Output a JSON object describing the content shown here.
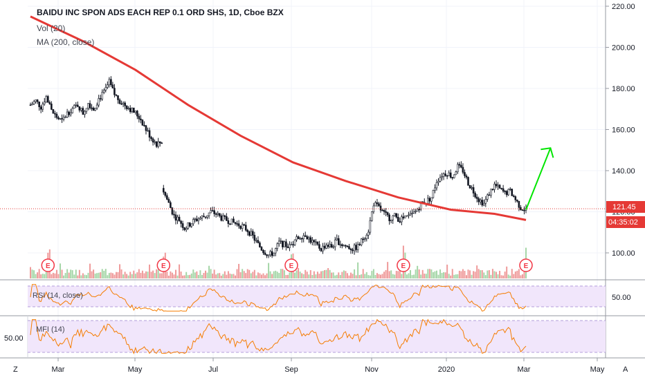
{
  "chart_data": {
    "type": "candlestick",
    "title": "BAIDU INC SPON ADS EACH REP 0.1 ORD SHS, 1D, Cboe BZX",
    "legend": [
      "Vol (20)",
      "MA (200, close)"
    ],
    "price_axis": {
      "ticks": [
        220,
        200,
        180,
        160,
        140,
        120,
        100
      ],
      "tick_labels": [
        "220.00",
        "200.00",
        "180.00",
        "160.00",
        "140.00",
        "120.00",
        "100.00"
      ],
      "range": [
        93,
        222
      ]
    },
    "x_axis": {
      "ticks": [
        "Mar",
        "May",
        "Jul",
        "Sep",
        "Nov",
        "2020",
        "Mar",
        "May"
      ]
    },
    "last_price": {
      "value": 121.45,
      "label": "121.45",
      "timer": "04:35:02"
    },
    "price_series": [
      [
        0,
        172
      ],
      [
        3,
        174
      ],
      [
        6,
        171
      ],
      [
        9,
        176
      ],
      [
        12,
        169
      ],
      [
        15,
        166
      ],
      [
        18,
        164
      ],
      [
        21,
        168
      ],
      [
        24,
        170
      ],
      [
        27,
        172
      ],
      [
        30,
        168
      ],
      [
        33,
        173
      ],
      [
        36,
        170
      ],
      [
        39,
        175
      ],
      [
        42,
        178
      ],
      [
        45,
        183
      ],
      [
        48,
        177
      ],
      [
        51,
        174
      ],
      [
        54,
        172
      ],
      [
        57,
        170
      ],
      [
        60,
        168
      ],
      [
        63,
        165
      ],
      [
        66,
        160
      ],
      [
        69,
        156
      ],
      [
        72,
        153
      ],
      [
        75,
        154
      ],
      [
        76,
        130
      ],
      [
        79,
        124
      ],
      [
        82,
        118
      ],
      [
        85,
        116
      ],
      [
        88,
        112
      ],
      [
        91,
        114
      ],
      [
        94,
        116
      ],
      [
        97,
        117
      ],
      [
        100,
        118
      ],
      [
        103,
        120
      ],
      [
        106,
        119
      ],
      [
        109,
        117
      ],
      [
        112,
        116
      ],
      [
        115,
        115
      ],
      [
        118,
        114
      ],
      [
        121,
        113
      ],
      [
        124,
        111
      ],
      [
        127,
        108
      ],
      [
        130,
        104
      ],
      [
        133,
        101
      ],
      [
        136,
        99
      ],
      [
        139,
        100
      ],
      [
        142,
        105
      ],
      [
        145,
        104
      ],
      [
        148,
        103
      ],
      [
        151,
        106
      ],
      [
        154,
        108
      ],
      [
        157,
        109
      ],
      [
        160,
        106
      ],
      [
        163,
        104
      ],
      [
        166,
        102
      ],
      [
        169,
        104
      ],
      [
        172,
        103
      ],
      [
        175,
        106
      ],
      [
        178,
        104
      ],
      [
        181,
        103
      ],
      [
        184,
        102
      ],
      [
        187,
        103
      ],
      [
        190,
        107
      ],
      [
        193,
        111
      ],
      [
        196,
        124
      ],
      [
        199,
        122
      ],
      [
        202,
        119
      ],
      [
        205,
        117
      ],
      [
        208,
        118
      ],
      [
        211,
        116
      ],
      [
        214,
        117
      ],
      [
        217,
        118
      ],
      [
        220,
        120
      ],
      [
        223,
        124
      ],
      [
        226,
        125
      ],
      [
        229,
        127
      ],
      [
        232,
        135
      ],
      [
        235,
        138
      ],
      [
        238,
        139
      ],
      [
        241,
        137
      ],
      [
        244,
        142
      ],
      [
        247,
        140
      ],
      [
        250,
        134
      ],
      [
        253,
        130
      ],
      [
        256,
        126
      ],
      [
        259,
        124
      ],
      [
        262,
        129
      ],
      [
        265,
        133
      ],
      [
        268,
        131
      ],
      [
        271,
        129
      ],
      [
        274,
        130
      ],
      [
        277,
        126
      ],
      [
        280,
        122
      ],
      [
        283,
        121
      ]
    ],
    "ma200": [
      [
        0,
        215
      ],
      [
        30,
        203
      ],
      [
        60,
        189
      ],
      [
        90,
        172
      ],
      [
        120,
        157
      ],
      [
        150,
        144
      ],
      [
        180,
        135
      ],
      [
        210,
        127
      ],
      [
        240,
        121
      ],
      [
        265,
        119
      ],
      [
        283,
        116
      ]
    ],
    "projection": {
      "from": [
        283,
        121
      ],
      "to": [
        297,
        151
      ]
    },
    "earnings_markers": [
      "E",
      "E",
      "E",
      "E",
      "E"
    ],
    "earnings_days": [
      10,
      76,
      149,
      213,
      283
    ],
    "indicators": [
      {
        "name": "RSI (14, close)",
        "axis_label": "50.00",
        "band": [
          30,
          70
        ]
      },
      {
        "name": "MFI (14)",
        "axis_label": "50.00",
        "band": [
          20,
          80
        ]
      }
    ]
  },
  "bottom_bar": {
    "left": "Z",
    "right": "A"
  }
}
